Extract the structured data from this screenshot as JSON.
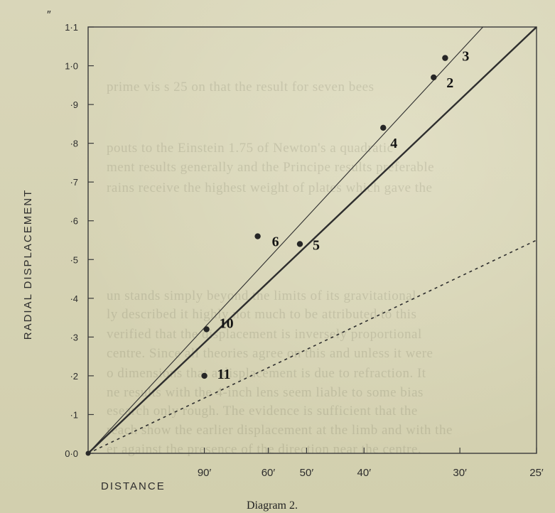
{
  "chart_data": {
    "type": "scatter",
    "title": "",
    "caption": "Diagram 2.",
    "xlabel": "DISTANCE",
    "ylabel": "RADIAL DISPLACEMENT",
    "y_unit_label": "″",
    "x_scale": "reciprocal",
    "xlim": [
      1000,
      25
    ],
    "ylim": [
      0.0,
      1.1
    ],
    "x_ticks": [
      {
        "value": 90,
        "label": "90′"
      },
      {
        "value": 60,
        "label": "60′"
      },
      {
        "value": 50,
        "label": "50′"
      },
      {
        "value": 40,
        "label": "40′"
      },
      {
        "value": 30,
        "label": "30′"
      },
      {
        "value": 25,
        "label": "25′"
      }
    ],
    "y_ticks": [
      {
        "value": 0.0,
        "label": "0·0"
      },
      {
        "value": 0.1,
        "label": "·1"
      },
      {
        "value": 0.2,
        "label": "·2"
      },
      {
        "value": 0.3,
        "label": "·3"
      },
      {
        "value": 0.4,
        "label": "·4"
      },
      {
        "value": 0.5,
        "label": "·5"
      },
      {
        "value": 0.6,
        "label": "·6"
      },
      {
        "value": 0.7,
        "label": "·7"
      },
      {
        "value": 0.8,
        "label": "·8"
      },
      {
        "value": 0.9,
        "label": "·9"
      },
      {
        "value": 1.0,
        "label": "1·0"
      },
      {
        "value": 1.1,
        "label": "1·1"
      }
    ],
    "points": [
      {
        "label": "3",
        "x": 31.2,
        "y": 1.02
      },
      {
        "label": "2",
        "x": 32.2,
        "y": 0.97
      },
      {
        "label": "4",
        "x": 37.5,
        "y": 0.84
      },
      {
        "label": "6",
        "x": 63.5,
        "y": 0.56
      },
      {
        "label": "5",
        "x": 51.5,
        "y": 0.54
      },
      {
        "label": "10",
        "x": 88.5,
        "y": 0.32
      },
      {
        "label": "11",
        "x": 90,
        "y": 0.2
      }
    ],
    "lines": [
      {
        "style": "solid-thin",
        "from": {
          "x": 1000,
          "y": 0.0
        },
        "to": {
          "x": 28.3,
          "y": 1.1
        }
      },
      {
        "style": "solid-thick",
        "from": {
          "x": 1000,
          "y": 0.0
        },
        "to": {
          "x": 25,
          "y": 1.1
        }
      },
      {
        "style": "dashed",
        "from": {
          "x": 1000,
          "y": 0.0
        },
        "to": {
          "x": 25,
          "y": 0.55
        }
      }
    ],
    "grid": false,
    "legend": "none",
    "colors": {
      "ink": "#2d2d2d",
      "paper": "#d6d3b4"
    }
  }
}
